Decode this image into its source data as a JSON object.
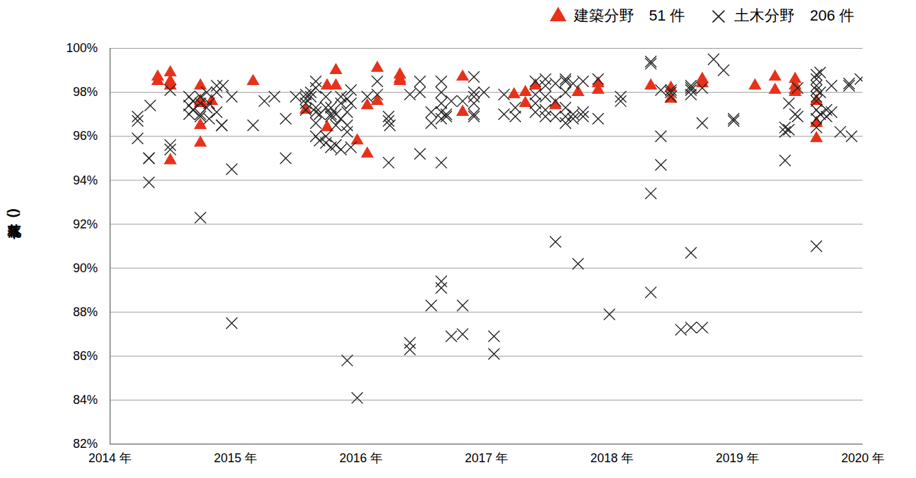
{
  "chart_data": {
    "type": "scatter",
    "y_label": "(落札率)",
    "xlim": [
      2014,
      2020
    ],
    "xticks": [
      {
        "value": 2014,
        "label": "2014 年"
      },
      {
        "value": 2015,
        "label": "2015 年"
      },
      {
        "value": 2016,
        "label": "2016 年"
      },
      {
        "value": 2017,
        "label": "2017 年"
      },
      {
        "value": 2018,
        "label": "2018 年"
      },
      {
        "value": 2019,
        "label": "2019 年"
      },
      {
        "value": 2020,
        "label": "2020 年"
      }
    ],
    "ylim": [
      82,
      100
    ],
    "yticks": [
      {
        "value": 82,
        "label": "82%"
      },
      {
        "value": 84,
        "label": "84%"
      },
      {
        "value": 86,
        "label": "86%"
      },
      {
        "value": 88,
        "label": "88%"
      },
      {
        "value": 90,
        "label": "90%"
      },
      {
        "value": 92,
        "label": "92%"
      },
      {
        "value": 94,
        "label": "94%"
      },
      {
        "value": 96,
        "label": "96%"
      },
      {
        "value": 98,
        "label": "98%"
      },
      {
        "value": 100,
        "label": "100%"
      }
    ],
    "grid": true,
    "legend": "top",
    "series": [
      {
        "name": "建築分野　51 件",
        "color": "#e8311a",
        "marker": "triangle",
        "x": [
          2014.38,
          2014.38,
          2014.48,
          2014.48,
          2014.48,
          2014.48,
          2014.72,
          2014.72,
          2014.72,
          2014.72,
          2014.72,
          2014.81,
          2015.14,
          2015.56,
          2015.73,
          2015.73,
          2015.8,
          2015.8,
          2015.97,
          2016.05,
          2016.05,
          2016.13,
          2016.13,
          2016.31,
          2016.31,
          2016.31,
          2016.81,
          2016.81,
          2017.22,
          2017.31,
          2017.31,
          2017.39,
          2017.55,
          2017.73,
          2017.89,
          2017.89,
          2018.31,
          2018.47,
          2018.47,
          2018.72,
          2018.72,
          2019.14,
          2019.3,
          2019.3,
          2019.46,
          2019.46,
          2019.46,
          2019.46,
          2019.63,
          2019.63,
          2019.63
        ],
        "values": [
          98.7,
          98.5,
          98.9,
          98.5,
          98.3,
          94.9,
          98.3,
          97.6,
          97.5,
          96.5,
          95.7,
          97.6,
          98.5,
          97.2,
          98.3,
          96.4,
          99.0,
          98.3,
          95.8,
          97.4,
          95.2,
          99.1,
          97.6,
          98.8,
          98.6,
          98.5,
          98.7,
          97.1,
          97.9,
          98.0,
          97.5,
          98.3,
          97.4,
          98.0,
          98.4,
          98.1,
          98.3,
          98.2,
          97.7,
          98.6,
          98.4,
          98.3,
          98.7,
          98.1,
          98.6,
          98.3,
          98.0,
          98.1,
          97.6,
          96.6,
          95.9
        ]
      },
      {
        "name": "土木分野　206 件",
        "color": "#222222",
        "marker": "x",
        "x": [
          2014.22,
          2014.22,
          2014.22,
          2014.31,
          2014.31,
          2014.31,
          2014.32,
          2014.48,
          2014.48,
          2014.48,
          2014.63,
          2014.63,
          2014.63,
          2014.66,
          2014.66,
          2014.72,
          2014.72,
          2014.72,
          2014.72,
          2014.72,
          2014.77,
          2014.77,
          2014.79,
          2014.79,
          2014.85,
          2014.85,
          2014.85,
          2014.89,
          2014.89,
          2014.9,
          2014.97,
          2014.97,
          2014.97,
          2015.14,
          2015.23,
          2015.31,
          2015.4,
          2015.4,
          2015.48,
          2015.56,
          2015.56,
          2015.56,
          2015.56,
          2015.6,
          2015.6,
          2015.64,
          2015.64,
          2015.64,
          2015.64,
          2015.64,
          2015.64,
          2015.67,
          2015.67,
          2015.72,
          2015.72,
          2015.72,
          2015.72,
          2015.76,
          2015.76,
          2015.76,
          2015.76,
          2015.8,
          2015.8,
          2015.8,
          2015.84,
          2015.84,
          2015.84,
          2015.84,
          2015.89,
          2015.89,
          2015.89,
          2015.89,
          2015.89,
          2015.92,
          2015.92,
          2015.92,
          2015.97,
          2016.05,
          2016.13,
          2016.13,
          2016.22,
          2016.22,
          2016.22,
          2016.23,
          2016.39,
          2016.39,
          2016.39,
          2016.47,
          2016.47,
          2016.47,
          2016.56,
          2016.56,
          2016.56,
          2016.64,
          2016.64,
          2016.64,
          2016.64,
          2016.64,
          2016.64,
          2016.64,
          2016.64,
          2016.68,
          2016.68,
          2016.72,
          2016.72,
          2016.81,
          2016.81,
          2016.81,
          2016.9,
          2016.9,
          2016.9,
          2016.9,
          2016.9,
          2016.9,
          2016.98,
          2017.06,
          2017.06,
          2017.14,
          2017.14,
          2017.23,
          2017.23,
          2017.39,
          2017.39,
          2017.39,
          2017.39,
          2017.47,
          2017.47,
          2017.47,
          2017.47,
          2017.47,
          2017.55,
          2017.55,
          2017.55,
          2017.55,
          2017.63,
          2017.63,
          2017.63,
          2017.63,
          2017.63,
          2017.63,
          2017.69,
          2017.69,
          2017.69,
          2017.73,
          2017.77,
          2017.77,
          2017.77,
          2017.89,
          2017.89,
          2017.98,
          2018.07,
          2018.07,
          2018.31,
          2018.31,
          2018.31,
          2018.31,
          2018.39,
          2018.39,
          2018.39,
          2018.47,
          2018.47,
          2018.47,
          2018.55,
          2018.63,
          2018.63,
          2018.63,
          2018.63,
          2018.63,
          2018.63,
          2018.72,
          2018.72,
          2018.72,
          2018.81,
          2018.89,
          2018.97,
          2018.97,
          2019.38,
          2019.38,
          2019.38,
          2019.41,
          2019.41,
          2019.46,
          2019.48,
          2019.48,
          2019.63,
          2019.63,
          2019.63,
          2019.63,
          2019.63,
          2019.63,
          2019.63,
          2019.63,
          2019.63,
          2019.63,
          2019.66,
          2019.66,
          2019.66,
          2019.71,
          2019.71,
          2019.75,
          2019.75,
          2019.82,
          2019.89,
          2019.89,
          2019.91,
          2019.98
        ],
        "values": [
          96.9,
          96.7,
          95.9,
          95.0,
          95.0,
          93.9,
          97.4,
          95.6,
          95.4,
          98.1,
          97.8,
          97.4,
          97.0,
          97.6,
          97.2,
          92.3,
          97.0,
          97.8,
          97.5,
          96.9,
          98.0,
          97.3,
          97.5,
          96.8,
          98.3,
          97.1,
          98.0,
          96.5,
          96.5,
          98.3,
          97.8,
          94.5,
          87.5,
          96.5,
          97.6,
          97.8,
          95.0,
          96.8,
          97.8,
          97.7,
          97.9,
          97.5,
          97.2,
          97.8,
          98.0,
          98.2,
          98.5,
          96.0,
          97.3,
          97.1,
          96.6,
          95.8,
          97.0,
          97.3,
          96.0,
          95.7,
          97.8,
          96.9,
          97.3,
          95.5,
          97.0,
          97.0,
          96.5,
          95.6,
          97.5,
          96.8,
          97.8,
          95.4,
          97.1,
          97.7,
          96.5,
          96.2,
          85.8,
          98.1,
          97.5,
          95.5,
          84.1,
          97.8,
          98.5,
          97.9,
          96.9,
          96.7,
          94.8,
          96.5,
          86.6,
          86.3,
          97.9,
          98.5,
          98.0,
          95.2,
          96.6,
          88.3,
          97.1,
          98.5,
          98.0,
          97.5,
          97.1,
          94.8,
          89.4,
          89.1,
          96.8,
          97.0,
          96.9,
          86.9,
          97.6,
          97.6,
          87.0,
          88.3,
          98.7,
          98.0,
          97.5,
          97.0,
          97.8,
          96.9,
          98.0,
          86.9,
          86.1,
          97.9,
          97.0,
          97.3,
          96.9,
          98.5,
          97.5,
          97.9,
          97.1,
          98.6,
          98.3,
          96.9,
          97.2,
          97.8,
          98.4,
          96.9,
          91.2,
          97.6,
          98.6,
          98.5,
          96.6,
          97.3,
          96.9,
          98.0,
          98.4,
          96.8,
          97.0,
          90.2,
          98.5,
          97.1,
          96.9,
          98.6,
          96.8,
          87.9,
          97.8,
          97.6,
          99.4,
          99.3,
          93.4,
          88.9,
          98.1,
          96.0,
          94.7,
          98.1,
          98.0,
          97.8,
          87.2,
          98.3,
          98.2,
          97.9,
          90.7,
          87.3,
          98.1,
          98.2,
          96.6,
          87.3,
          99.5,
          99.0,
          96.8,
          96.7,
          94.9,
          96.4,
          96.2,
          97.5,
          96.3,
          97.0,
          96.9,
          98.2,
          98.8,
          98.6,
          98.3,
          97.8,
          97.2,
          96.8,
          96.4,
          91.0,
          98.1,
          97.6,
          98.9,
          98.0,
          97.0,
          97.2,
          96.9,
          98.3,
          97.1,
          96.2,
          98.3,
          98.4,
          96.0,
          98.6
        ]
      }
    ]
  }
}
